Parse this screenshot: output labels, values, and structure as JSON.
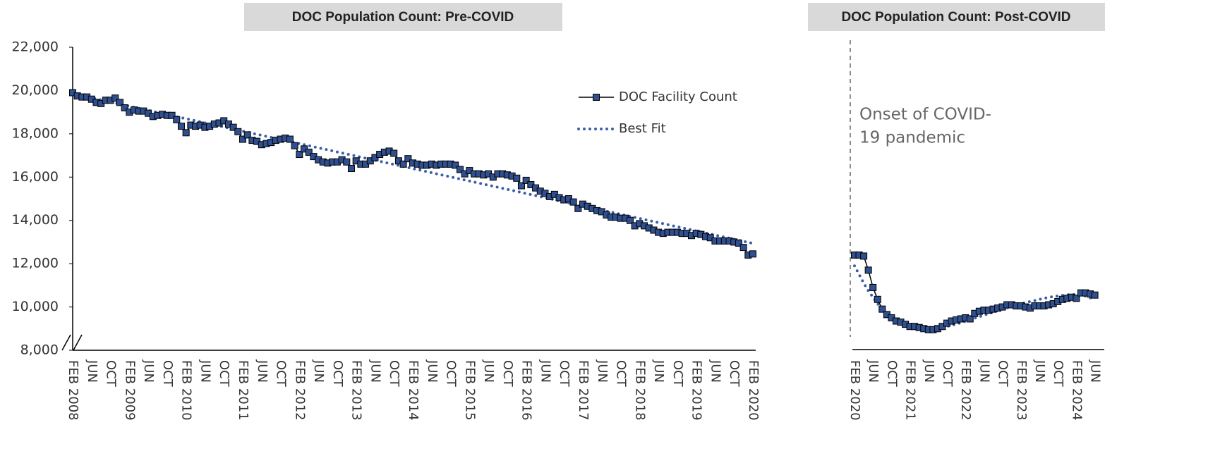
{
  "chart_data": [
    {
      "type": "line",
      "title": "DOC Population Count: Pre-COVID",
      "categories": [
        "FEB 2008",
        null,
        null,
        null,
        "JUN",
        null,
        null,
        null,
        "OCT",
        null,
        null,
        null,
        "FEB 2009",
        null,
        null,
        null,
        "JUN",
        null,
        null,
        null,
        "OCT",
        null,
        null,
        null,
        "FEB 2010",
        null,
        null,
        null,
        "JUN",
        null,
        null,
        null,
        "OCT",
        null,
        null,
        null,
        "FEB 2011",
        null,
        null,
        null,
        "JUN",
        null,
        null,
        null,
        "OCT",
        null,
        null,
        null,
        "FEB 2012",
        null,
        null,
        null,
        "JUN",
        null,
        null,
        null,
        "OCT",
        null,
        null,
        null,
        "FEB 2013",
        null,
        null,
        null,
        "JUN",
        null,
        null,
        null,
        "OCT",
        null,
        null,
        null,
        "FEB 2014",
        null,
        null,
        null,
        "JUN",
        null,
        null,
        null,
        "OCT",
        null,
        null,
        null,
        "FEB 2015",
        null,
        null,
        null,
        "JUN",
        null,
        null,
        null,
        "OCT",
        null,
        null,
        null,
        "FEB 2016",
        null,
        null,
        null,
        "JUN",
        null,
        null,
        null,
        "OCT",
        null,
        null,
        null,
        "FEB 2017",
        null,
        null,
        null,
        "JUN",
        null,
        null,
        null,
        "OCT",
        null,
        null,
        null,
        "FEB 2018",
        null,
        null,
        null,
        "JUN",
        null,
        null,
        null,
        "OCT",
        null,
        null,
        null,
        "FEB 2019",
        null,
        null,
        null,
        "JUN",
        null,
        null,
        null,
        "OCT",
        null,
        null,
        null,
        "FEB 2020"
      ],
      "series": [
        {
          "name": "DOC Facility Count",
          "color": "#2f4f8f",
          "values": [
            19900,
            19750,
            19700,
            19700,
            19600,
            19450,
            19400,
            19550,
            19550,
            19650,
            19450,
            19200,
            19000,
            19100,
            19050,
            19050,
            18950,
            18800,
            18850,
            18900,
            18850,
            18850,
            18650,
            18350,
            18050,
            18400,
            18350,
            18400,
            18300,
            18350,
            18450,
            18500,
            18600,
            18450,
            18300,
            18100,
            17750,
            17950,
            17700,
            17650,
            17500,
            17550,
            17600,
            17700,
            17750,
            17800,
            17750,
            17450,
            17050,
            17300,
            17150,
            16950,
            16800,
            16700,
            16650,
            16700,
            16700,
            16800,
            16700,
            16400,
            16750,
            16600,
            16600,
            16750,
            16900,
            17050,
            17150,
            17200,
            17100,
            16750,
            16600,
            16850,
            16650,
            16600,
            16550,
            16550,
            16600,
            16550,
            16600,
            16600,
            16600,
            16550,
            16350,
            16150,
            16300,
            16150,
            16150,
            16100,
            16150,
            16000,
            16150,
            16150,
            16100,
            16050,
            15950,
            15600,
            15850,
            15650,
            15500,
            15350,
            15250,
            15100,
            15200,
            15050,
            14950,
            15000,
            14850,
            14550,
            14750,
            14650,
            14550,
            14450,
            14400,
            14250,
            14150,
            14150,
            14100,
            14100,
            14000,
            13750,
            13850,
            13750,
            13650,
            13550,
            13450,
            13400,
            13450,
            13450,
            13450,
            13400,
            13400,
            13300,
            13400,
            13350,
            13250,
            13200,
            13050,
            13050,
            13050,
            13050,
            13000,
            12950,
            12750,
            12400,
            12450
          ]
        },
        {
          "name": "Best Fit",
          "color": "#3a5ea8",
          "dotted": true,
          "values": [
            19850,
            19802,
            19754,
            19706,
            19658,
            19610,
            19562,
            19514,
            19466,
            19418,
            19370,
            19322,
            19274,
            19226,
            19178,
            19130,
            19082,
            19034,
            18986,
            18938,
            18890,
            18842,
            18794,
            18746,
            18698,
            18650,
            18602,
            18554,
            18506,
            18458,
            18410,
            18362,
            18314,
            18266,
            18218,
            18170,
            18122,
            18074,
            18026,
            17978,
            17930,
            17882,
            17834,
            17786,
            17738,
            17690,
            17642,
            17594,
            17546,
            17498,
            17450,
            17402,
            17354,
            17306,
            17258,
            17210,
            17162,
            17114,
            17066,
            17018,
            16970,
            16922,
            16874,
            16826,
            16778,
            16730,
            16682,
            16634,
            16586,
            16538,
            16490,
            16442,
            16394,
            16346,
            16298,
            16250,
            16202,
            16154,
            16106,
            16058,
            16010,
            15962,
            15914,
            15866,
            15818,
            15770,
            15722,
            15674,
            15626,
            15578,
            15530,
            15482,
            15434,
            15386,
            15338,
            15290,
            15242,
            15194,
            15146,
            15098,
            15050,
            15002,
            14954,
            14906,
            14858,
            14810,
            14762,
            14714,
            14666,
            14618,
            14570,
            14522,
            14474,
            14426,
            14378,
            14330,
            14282,
            14234,
            14186,
            14138,
            14090,
            14042,
            13994,
            13946,
            13898,
            13850,
            13802,
            13754,
            13706,
            13658,
            13610,
            13562,
            13514,
            13466,
            13418,
            13370,
            13322,
            13274,
            13226,
            13178,
            13130,
            13082,
            13034,
            12986,
            12938
          ]
        }
      ],
      "ylim": [
        8000,
        22000
      ],
      "yticks": [
        {
          "value": 8000,
          "label": "8,000"
        },
        {
          "value": 10000,
          "label": "10,000"
        },
        {
          "value": 12000,
          "label": "12,000"
        },
        {
          "value": 14000,
          "label": "14,000"
        },
        {
          "value": 16000,
          "label": "16,000"
        },
        {
          "value": 18000,
          "label": "18,000"
        },
        {
          "value": 20000,
          "label": "20,000"
        },
        {
          "value": 22000,
          "label": "22,000"
        }
      ],
      "legend": "upper right",
      "grid": false
    },
    {
      "type": "line",
      "title": "DOC Population Count: Post-COVID",
      "annotation": [
        "Onset of COVID-",
        "19 pandemic"
      ],
      "categories": [
        "FEB 2020",
        null,
        null,
        null,
        "JUN",
        null,
        null,
        null,
        "OCT",
        null,
        null,
        null,
        "FEB 2021",
        null,
        null,
        null,
        "JUN",
        null,
        null,
        null,
        "OCT",
        null,
        null,
        null,
        "FEB 2022",
        null,
        null,
        null,
        "JUN",
        null,
        null,
        null,
        "OCT",
        null,
        null,
        null,
        "FEB 2023",
        null,
        null,
        null,
        "JUN",
        null,
        null,
        null,
        "OCT",
        null,
        null,
        null,
        "FEB 2024",
        null,
        null,
        null,
        "JUN"
      ],
      "series": [
        {
          "color": "#2f4f8f",
          "values": [
            12400,
            12400,
            12350,
            11700,
            10900,
            10350,
            9900,
            9650,
            9500,
            9350,
            9300,
            9200,
            9100,
            9100,
            9050,
            9000,
            8950,
            8950,
            9000,
            9100,
            9250,
            9350,
            9400,
            9450,
            9500,
            9450,
            9700,
            9800,
            9850,
            9850,
            9900,
            9950,
            10000,
            10100,
            10100,
            10050,
            10050,
            10000,
            9950,
            10050,
            10050,
            10050,
            10100,
            10150,
            10250,
            10350,
            10400,
            10450,
            10400,
            10650,
            10650,
            10600,
            10550
          ]
        },
        {
          "color": "#3a5ea8",
          "dotted": true,
          "values": [
            11900,
            11500,
            11100,
            10750,
            10450,
            10150,
            9900,
            9680,
            9500,
            9350,
            9220,
            9120,
            9050,
            9000,
            8970,
            8960,
            8960,
            8980,
            9010,
            9050,
            9100,
            9150,
            9210,
            9270,
            9340,
            9410,
            9480,
            9550,
            9620,
            9690,
            9760,
            9830,
            9900,
            9960,
            10020,
            10080,
            10140,
            10200,
            10250,
            10300,
            10350,
            10400,
            10440,
            10480,
            10510,
            10540,
            10560,
            10570,
            10570,
            10550,
            10500,
            10420,
            10300
          ]
        }
      ],
      "ylim": [
        8000,
        22000
      ],
      "grid": false
    }
  ]
}
